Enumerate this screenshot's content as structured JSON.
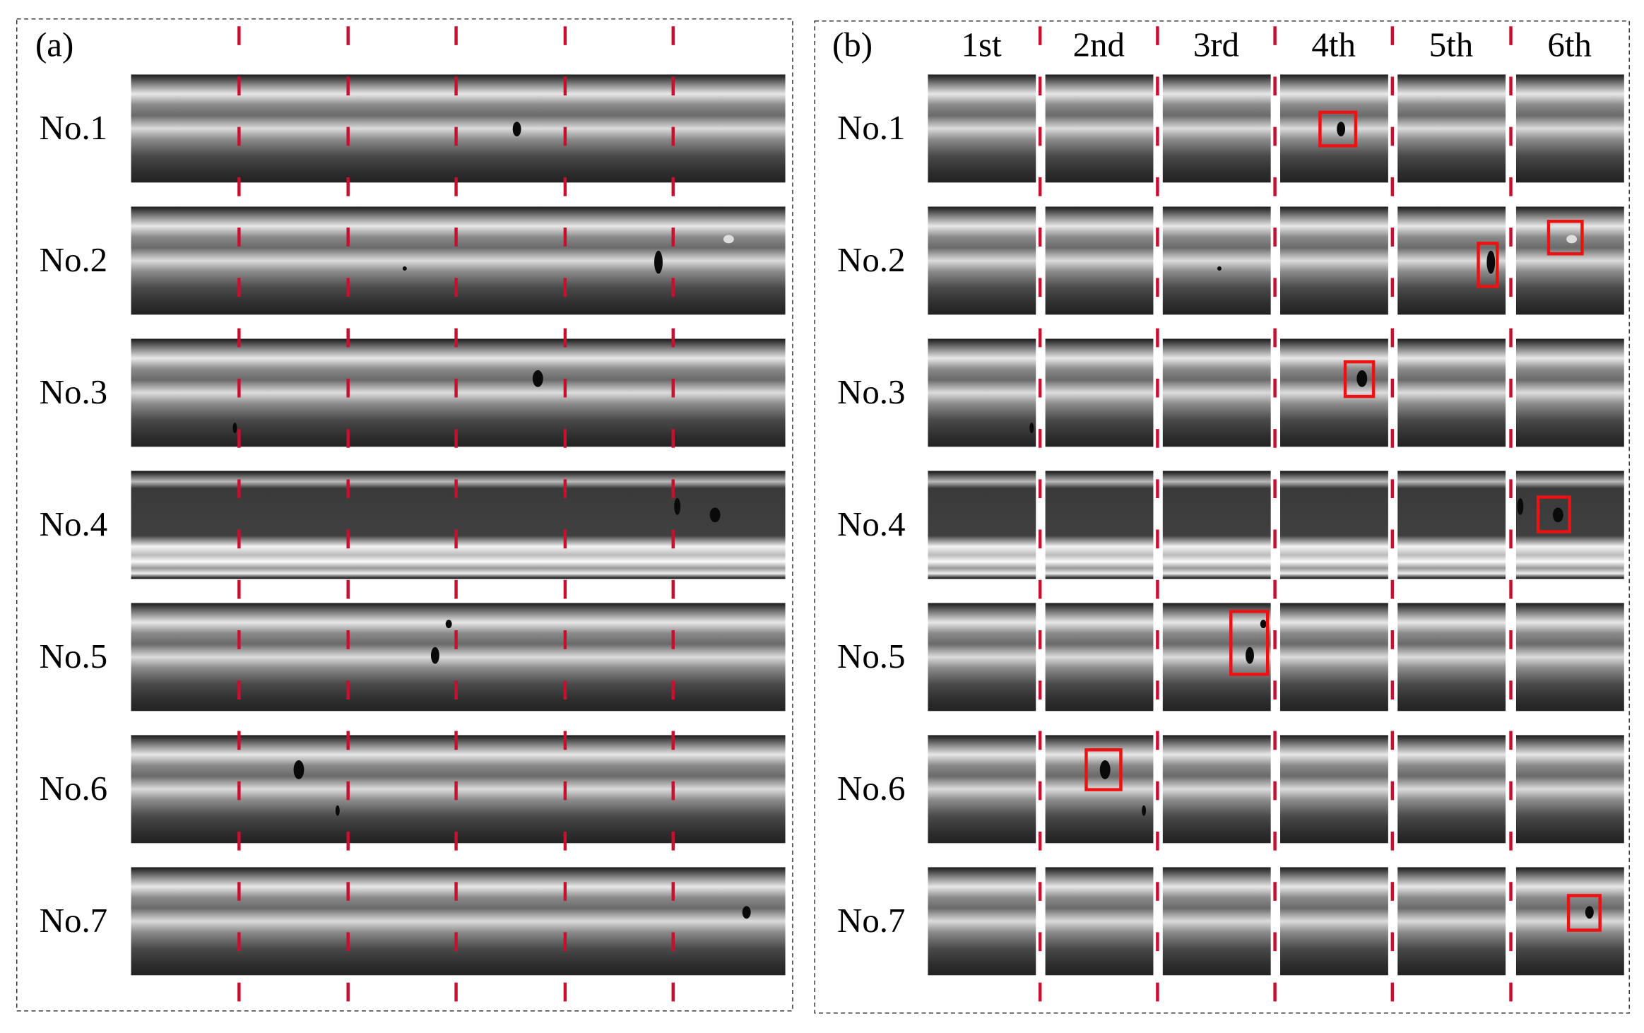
{
  "panel_a": {
    "label": "(a)",
    "rows": [
      "No.1",
      "No.2",
      "No.3",
      "No.4",
      "No.5",
      "No.6",
      "No.7"
    ]
  },
  "panel_b": {
    "label": "(b)",
    "columns": [
      "1st",
      "2nd",
      "3rd",
      "4th",
      "5th",
      "6th"
    ],
    "rows": [
      "No.1",
      "No.2",
      "No.3",
      "No.4",
      "No.5",
      "No.6",
      "No.7"
    ]
  }
}
